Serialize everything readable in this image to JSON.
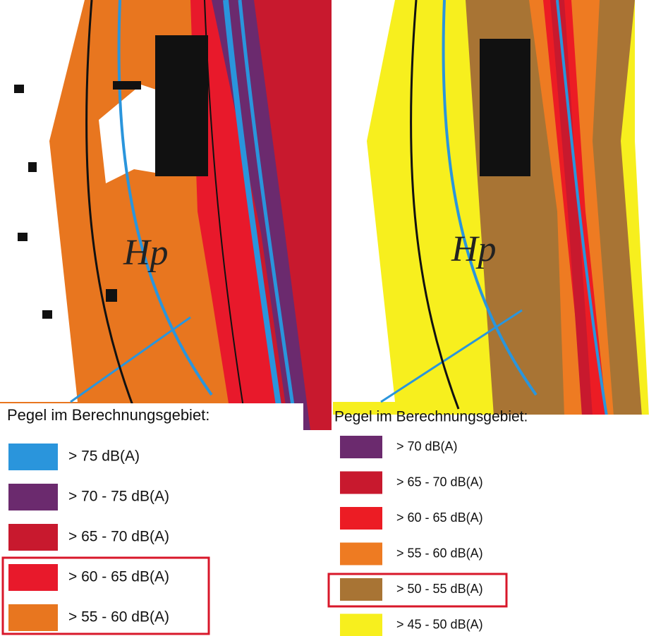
{
  "left_map": {
    "label": "Hp",
    "legend": {
      "title": "Pegel im Berechnungsgebiet:",
      "items": [
        {
          "label": "> 75 dB(A)",
          "color": "#2a95dc"
        },
        {
          "label": "> 70 - 75 dB(A)",
          "color": "#6b2a6e"
        },
        {
          "label": "> 65 - 70 dB(A)",
          "color": "#c8192e"
        },
        {
          "label": "> 60 - 65 dB(A)",
          "color": "#e8192b"
        },
        {
          "label": "> 55 - 60 dB(A)",
          "color": "#e8761f"
        }
      ]
    }
  },
  "right_map": {
    "label": "Hp",
    "legend": {
      "title": "Pegel im Berechnungsgebiet:",
      "items": [
        {
          "label": "> 70 dB(A)",
          "color": "#6b2a6e"
        },
        {
          "label": "> 65 - 70 dB(A)",
          "color": "#c8192e"
        },
        {
          "label": "> 60 - 65 dB(A)",
          "color": "#ec1c24"
        },
        {
          "label": "> 55 - 60 dB(A)",
          "color": "#ee7b22"
        },
        {
          "label": "> 50 - 55 dB(A)",
          "color": "#a87434"
        },
        {
          "label": "> 45 - 50 dB(A)",
          "color": "#f7ef1e"
        }
      ]
    }
  }
}
